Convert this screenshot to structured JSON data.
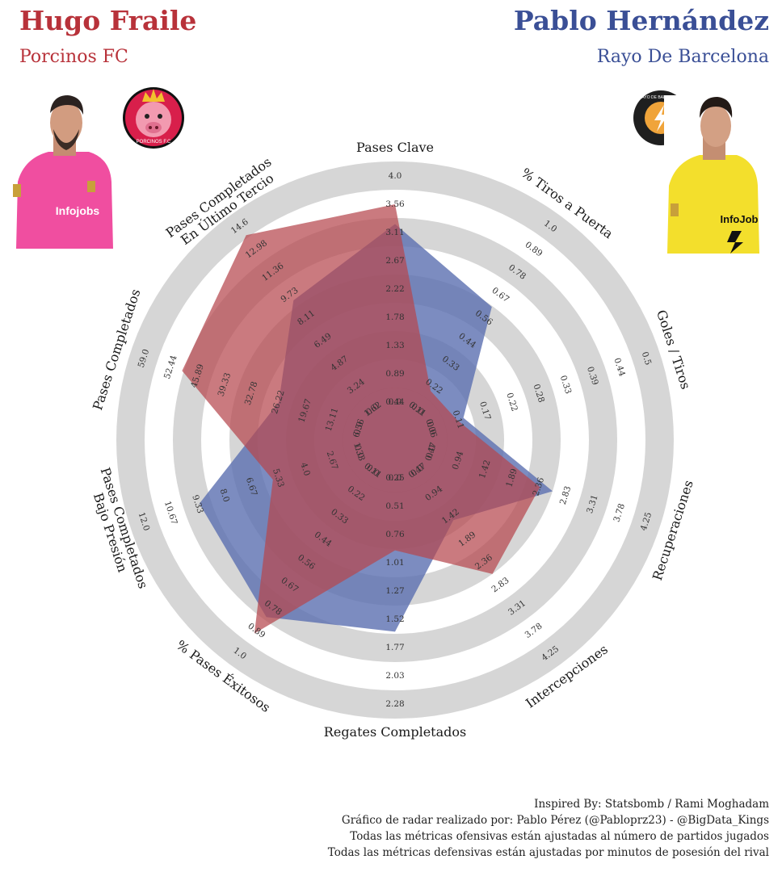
{
  "player1": {
    "name": "Hugo Fraile",
    "team": "Porcinos FC",
    "color": "#b8323a",
    "fill": "#b5474d",
    "crest_text": "PORCINOS F.C"
  },
  "player2": {
    "name": "Pablo Hernández",
    "team": "Rayo De Barcelona",
    "color": "#3a4f96",
    "fill": "#5b6fb0",
    "crest_text": "RAYO DE BARCELONA"
  },
  "chart_data": {
    "type": "radar",
    "axes": [
      {
        "label": "Pases Clave",
        "ticks": [
          "0.0",
          "0.44",
          "0.89",
          "1.33",
          "1.78",
          "2.22",
          "2.67",
          "3.11",
          "3.56",
          "4.0"
        ],
        "max": 4.0
      },
      {
        "label": "% Tiros a Puerta",
        "ticks": [
          "0.0",
          "0.11",
          "0.22",
          "0.33",
          "0.44",
          "0.56",
          "0.67",
          "0.78",
          "0.89",
          "1.0"
        ],
        "max": 1.0
      },
      {
        "label": "Goles / Tiros",
        "ticks": [
          "0.0",
          "0.06",
          "0.11",
          "0.17",
          "0.22",
          "0.28",
          "0.33",
          "0.39",
          "0.44",
          "0.5"
        ],
        "max": 0.5
      },
      {
        "label": "Recuperaciones",
        "ticks": [
          "0.0",
          "0.47",
          "0.94",
          "1.42",
          "1.89",
          "2.36",
          "2.83",
          "3.31",
          "3.78",
          "4.25"
        ],
        "max": 4.25
      },
      {
        "label": "Intercepciones",
        "ticks": [
          "0.0",
          "0.47",
          "0.94",
          "1.42",
          "1.89",
          "2.36",
          "2.83",
          "3.31",
          "3.78",
          "4.25"
        ],
        "max": 4.25
      },
      {
        "label": "Regates Completados",
        "ticks": [
          "0.0",
          "0.25",
          "0.51",
          "0.76",
          "1.01",
          "1.27",
          "1.52",
          "1.77",
          "2.03",
          "2.28"
        ],
        "max": 2.28
      },
      {
        "label": "% Pases Éxitosos",
        "ticks": [
          "0.0",
          "0.11",
          "0.22",
          "0.33",
          "0.44",
          "0.56",
          "0.67",
          "0.78",
          "0.89",
          "1.0"
        ],
        "max": 1.0
      },
      {
        "label": "Pases Completados\nBajo Presión",
        "ticks": [
          "0.0",
          "1.33",
          "2.67",
          "4.0",
          "5.33",
          "6.67",
          "8.0",
          "9.33",
          "10.67",
          "12.0"
        ],
        "max": 12.0
      },
      {
        "label": "Pases Completados",
        "ticks": [
          "0.0",
          "6.56",
          "13.11",
          "19.67",
          "26.22",
          "32.78",
          "39.33",
          "45.89",
          "52.44",
          "59.0"
        ],
        "max": 59.0
      },
      {
        "label": "Pases Completados\nEn Último Tercio",
        "ticks": [
          "0.0",
          "1.62",
          "3.24",
          "4.87",
          "6.49",
          "8.11",
          "9.73",
          "11.36",
          "12.98",
          "14.6"
        ],
        "max": 14.6
      }
    ],
    "series": [
      {
        "name": "Hugo Fraile",
        "values": [
          3.5,
          0.1,
          0.06,
          2.15,
          2.4,
          0.73,
          0.89,
          4.8,
          48.5,
          13.9
        ]
      },
      {
        "name": "Pablo Hernández",
        "values": [
          3.15,
          0.56,
          0.075,
          2.4,
          1.15,
          1.55,
          0.8,
          8.9,
          22.0,
          8.7
        ]
      }
    ]
  },
  "footer": {
    "line1": "Inspired By: Statsbomb / Rami Moghadam",
    "line2": "Gráfico de radar realizado por: Pablo Pérez (@Pabloprz23) - @BigData_Kings",
    "line3": "Todas las métricas ofensivas están ajustadas al número de partidos jugados",
    "line4": "Todas las métricas defensivas están ajustadas por minutos de posesión del rival"
  }
}
